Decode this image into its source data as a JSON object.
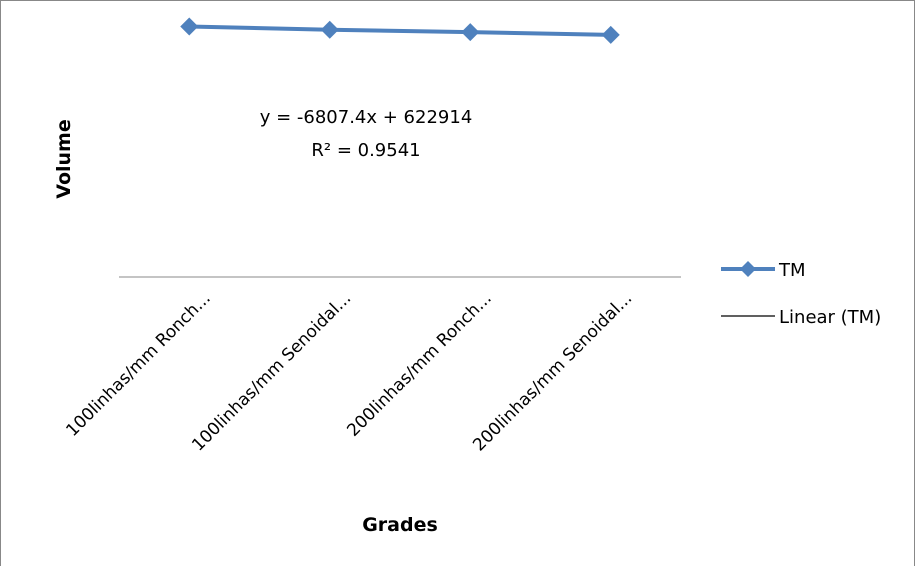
{
  "chart_data": {
    "type": "line",
    "categories": [
      "100linhas/mm Ronch...",
      "100linhas/mm Senoidal...",
      "200linhas/mm Ronch...",
      "200linhas/mm Senoidal..."
    ],
    "series": [
      {
        "name": "TM",
        "values": [
          616500,
          608500,
          602500,
          596000
        ],
        "color": "#4F81BD",
        "marker": "diamond"
      }
    ],
    "trendline": {
      "name": "Linear (TM)",
      "type": "linear",
      "slope": -6807.4,
      "intercept": 622914,
      "color": "#000000",
      "equation": "y = -6807.4x + 622914",
      "r_squared": "R² = 0.9541"
    },
    "title": "",
    "xlabel": "Grades",
    "ylabel": "Volume",
    "ylim": [
      0,
      630000
    ],
    "y_tick_labels_visible": false,
    "grid": false,
    "legend_position": "right"
  }
}
